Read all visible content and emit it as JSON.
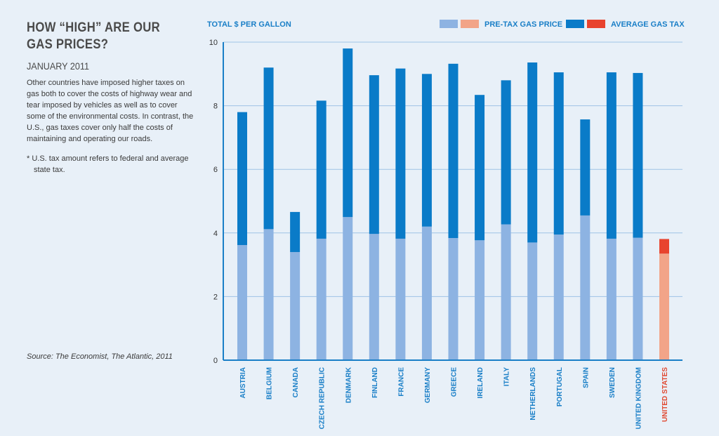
{
  "header": {
    "title_line1": "HOW “HIGH” ARE OUR",
    "title_line2": "GAS PRICES?",
    "date": "JANUARY 2011",
    "description": "Other countries have imposed higher taxes on gas both to cover the costs of highway wear and tear imposed by vehicles as well as to cover some of the environmental costs. In contrast, the U.S., gas taxes cover only half the costs of maintaining and operating our roads.",
    "footnote": "* U.S. tax amount refers to federal and average state tax.",
    "source": "Source: The Economist, The Atlantic, 2011"
  },
  "colors": {
    "pretax": "#8db3e2",
    "tax": "#0a7bc8",
    "pretax_us": "#f2a488",
    "tax_us": "#e8432e",
    "grid": "#9ec3e6",
    "axis": "#1a7fc7",
    "background": "#e8f0f8"
  },
  "chart_data": {
    "type": "bar",
    "stacked": true,
    "ylabel": "TOTAL $ PER GALLON",
    "ylim": [
      0,
      10
    ],
    "yticks": [
      0,
      2,
      4,
      6,
      8,
      10
    ],
    "grid": true,
    "legend_position": "top-right",
    "legend": [
      {
        "label": "PRE-TAX GAS PRICE",
        "swatches": [
          "#8db3e2",
          "#f2a488"
        ]
      },
      {
        "label": "AVERAGE GAS TAX",
        "swatches": [
          "#0a7bc8",
          "#e8432e"
        ]
      }
    ],
    "categories": [
      "AUSTRIA",
      "BELGIUM",
      "CANADA",
      "CZECH REPUBLIC",
      "DENMARK",
      "FINLAND",
      "FRANCE",
      "GERMANY",
      "GREECE",
      "IRELAND",
      "ITALY",
      "NETHERLANDS",
      "PORTUGAL",
      "SPAIN",
      "SWEDEN",
      "UNITED KINGDOM",
      "UNITED STATES"
    ],
    "highlight_category": "UNITED STATES",
    "series": [
      {
        "name": "PRE-TAX GAS PRICE",
        "values": [
          3.62,
          4.12,
          3.4,
          3.82,
          4.5,
          3.97,
          3.82,
          4.2,
          3.84,
          3.77,
          4.27,
          3.7,
          3.95,
          4.55,
          3.82,
          3.85,
          3.35
        ]
      },
      {
        "name": "AVERAGE GAS TAX",
        "values": [
          4.18,
          5.08,
          1.26,
          4.34,
          5.3,
          4.99,
          5.35,
          4.8,
          5.48,
          4.57,
          4.53,
          5.66,
          5.1,
          3.02,
          5.23,
          5.18,
          0.46
        ]
      }
    ]
  }
}
